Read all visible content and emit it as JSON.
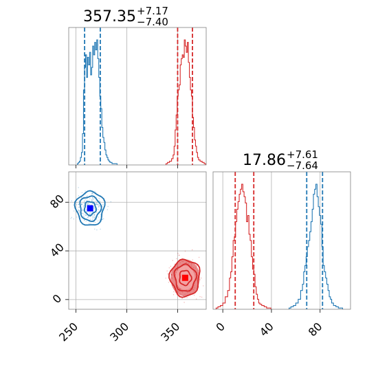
{
  "colors": {
    "blue": "#1f77b4",
    "red": "#d62728",
    "blue_marker": "#0000ff",
    "red_marker": "#ff0000"
  },
  "titles": [
    {
      "value": "357.35",
      "plus": "+7.17",
      "minus": "−7.40"
    },
    {
      "value": "17.86",
      "plus": "+7.61",
      "minus": "−7.64"
    }
  ],
  "chart_data": [
    {
      "type": "histogram",
      "panel": "top-left",
      "xlim": [
        243,
        378
      ],
      "grid": true,
      "series": [
        {
          "color": "#1f77b4",
          "x": [
            252,
            253,
            254,
            255,
            256,
            257,
            258,
            259,
            260,
            261,
            262,
            263,
            264,
            265,
            266,
            267,
            268,
            269,
            270,
            271,
            272,
            273,
            274,
            275,
            276,
            277,
            278,
            279,
            280,
            281,
            282,
            283,
            284,
            285,
            286,
            287,
            288,
            290
          ],
          "counts": [
            1,
            2,
            3,
            6,
            10,
            25,
            60,
            78,
            88,
            70,
            86,
            80,
            90,
            72,
            78,
            95,
            88,
            98,
            92,
            100,
            85,
            70,
            55,
            45,
            30,
            22,
            18,
            12,
            8,
            6,
            4,
            3,
            2,
            2,
            1,
            1,
            1,
            1
          ],
          "quantiles": [
            258.6,
            274.0
          ]
        },
        {
          "color": "#d62728",
          "x": [
            339,
            341,
            343,
            345,
            346,
            347,
            348,
            349,
            350,
            351,
            352,
            353,
            354,
            355,
            356,
            357,
            358,
            359,
            360,
            361,
            362,
            363,
            364,
            365,
            366,
            367,
            368,
            369,
            370,
            371,
            373,
            375,
            377
          ],
          "counts": [
            1,
            2,
            3,
            5,
            8,
            15,
            28,
            40,
            55,
            60,
            64,
            80,
            85,
            88,
            86,
            100,
            95,
            90,
            98,
            82,
            70,
            60,
            55,
            38,
            30,
            20,
            15,
            10,
            6,
            4,
            3,
            2,
            1
          ],
          "quantiles": [
            349.95,
            364.52
          ]
        }
      ]
    },
    {
      "type": "scatter",
      "panel": "bottom-left",
      "xlim": [
        243,
        378
      ],
      "ylim": [
        -8,
        105
      ],
      "grid": true,
      "series": [
        {
          "color": "#1f77b4",
          "center": [
            264,
            75
          ],
          "spread": [
            7,
            7
          ],
          "marker_color": "#0000ff",
          "marker": [
            264,
            75
          ]
        },
        {
          "color": "#d62728",
          "center": [
            357.35,
            17.86
          ],
          "spread": [
            7.2,
            7.6
          ],
          "marker_color": "#ff0000",
          "marker": [
            357.35,
            17.86
          ]
        }
      ]
    },
    {
      "type": "histogram",
      "panel": "bottom-right",
      "xlim": [
        -8,
        105
      ],
      "grid": true,
      "series": [
        {
          "color": "#d62728",
          "x": [
            -5,
            -3,
            -1,
            1,
            3,
            5,
            6,
            7,
            8,
            9,
            10,
            11,
            12,
            13,
            14,
            15,
            16,
            17,
            18,
            19,
            20,
            21,
            22,
            23,
            24,
            25,
            26,
            27,
            28,
            29,
            30,
            31,
            33,
            35,
            37,
            39
          ],
          "counts": [
            1,
            2,
            3,
            5,
            10,
            15,
            25,
            30,
            42,
            55,
            58,
            70,
            80,
            86,
            92,
            96,
            100,
            94,
            90,
            85,
            70,
            75,
            60,
            55,
            42,
            32,
            28,
            18,
            12,
            8,
            5,
            4,
            3,
            2,
            1,
            1
          ],
          "quantiles": [
            10.22,
            25.47
          ]
        },
        {
          "color": "#1f77b4",
          "x": [
            55,
            57,
            59,
            61,
            63,
            65,
            66,
            67,
            68,
            69,
            70,
            71,
            72,
            73,
            74,
            75,
            76,
            77,
            78,
            79,
            80,
            81,
            82,
            83,
            84,
            85,
            86,
            87,
            88,
            89,
            90,
            92,
            94,
            96,
            98
          ],
          "counts": [
            1,
            2,
            3,
            5,
            8,
            15,
            20,
            30,
            35,
            42,
            50,
            55,
            62,
            70,
            80,
            92,
            96,
            100,
            90,
            82,
            75,
            68,
            50,
            35,
            30,
            25,
            20,
            15,
            10,
            8,
            5,
            3,
            2,
            1,
            1
          ],
          "quantiles": [
            69.0,
            82.0
          ]
        }
      ]
    }
  ],
  "ticks": {
    "x_left": [
      250,
      300,
      350
    ],
    "x_left_labels": [
      "250",
      "300",
      "350"
    ],
    "y_bottom": [
      0,
      40,
      80
    ],
    "y_bottom_labels": [
      "0",
      "40",
      "80"
    ],
    "x_right": [
      0,
      40,
      80
    ],
    "x_right_labels": [
      "0",
      "40",
      "80"
    ]
  }
}
